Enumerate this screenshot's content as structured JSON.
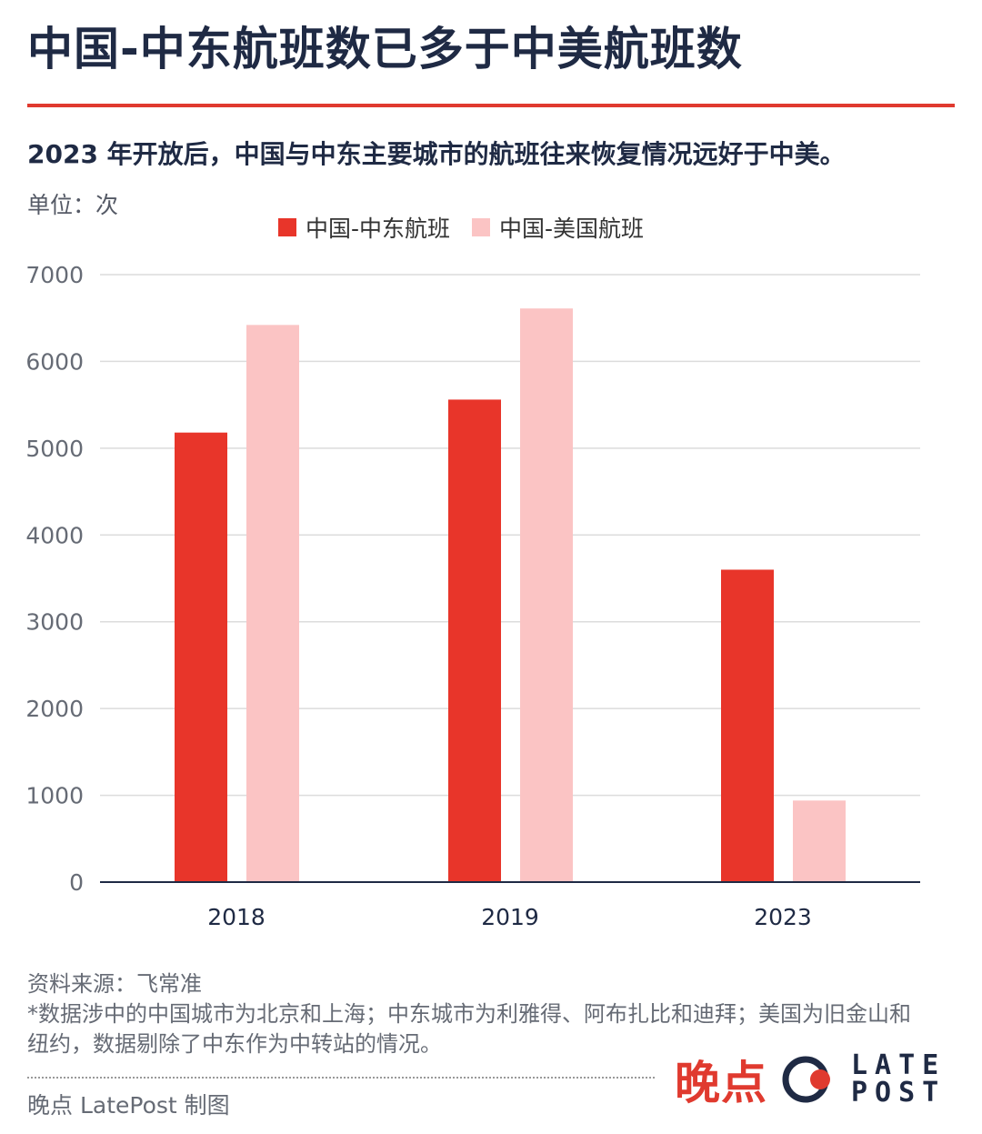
{
  "header": {
    "title": "中国-中东航班数已多于中美航班数",
    "subtitle": "2023 年开放后，中国与中东主要城市的航班往来恢复情况远好于中美。",
    "unit": "单位：次"
  },
  "colors": {
    "accent": "#e03a2f",
    "series_1": "#e8352a",
    "series_2": "#fbc4c4",
    "text_dark": "#1f2a44",
    "grid": "#dcdcdc"
  },
  "chart_data": {
    "type": "bar",
    "categories": [
      "2018",
      "2019",
      "2023"
    ],
    "series": [
      {
        "name": "中国-中东航班",
        "values": [
          5180,
          5560,
          3600
        ]
      },
      {
        "name": "中国-美国航班",
        "values": [
          6420,
          6610,
          940
        ]
      }
    ],
    "yticks": [
      "0",
      "1000",
      "2000",
      "3000",
      "4000",
      "5000",
      "6000",
      "7000"
    ],
    "ylim": [
      0,
      7000
    ],
    "grid": true,
    "legend": "top-center"
  },
  "footer": {
    "source": "资料来源：飞常准",
    "note": "*数据涉中的中国城市为北京和上海；中东城市为利雅得、阿布扎比和迪拜；美国为旧金山和纽约，数据剔除了中东作为中转站的情况。",
    "credit": "晚点 LatePost 制图",
    "brand_cn": "晚点",
    "brand_en_line1": "LATE",
    "brand_en_line2": "POST"
  }
}
